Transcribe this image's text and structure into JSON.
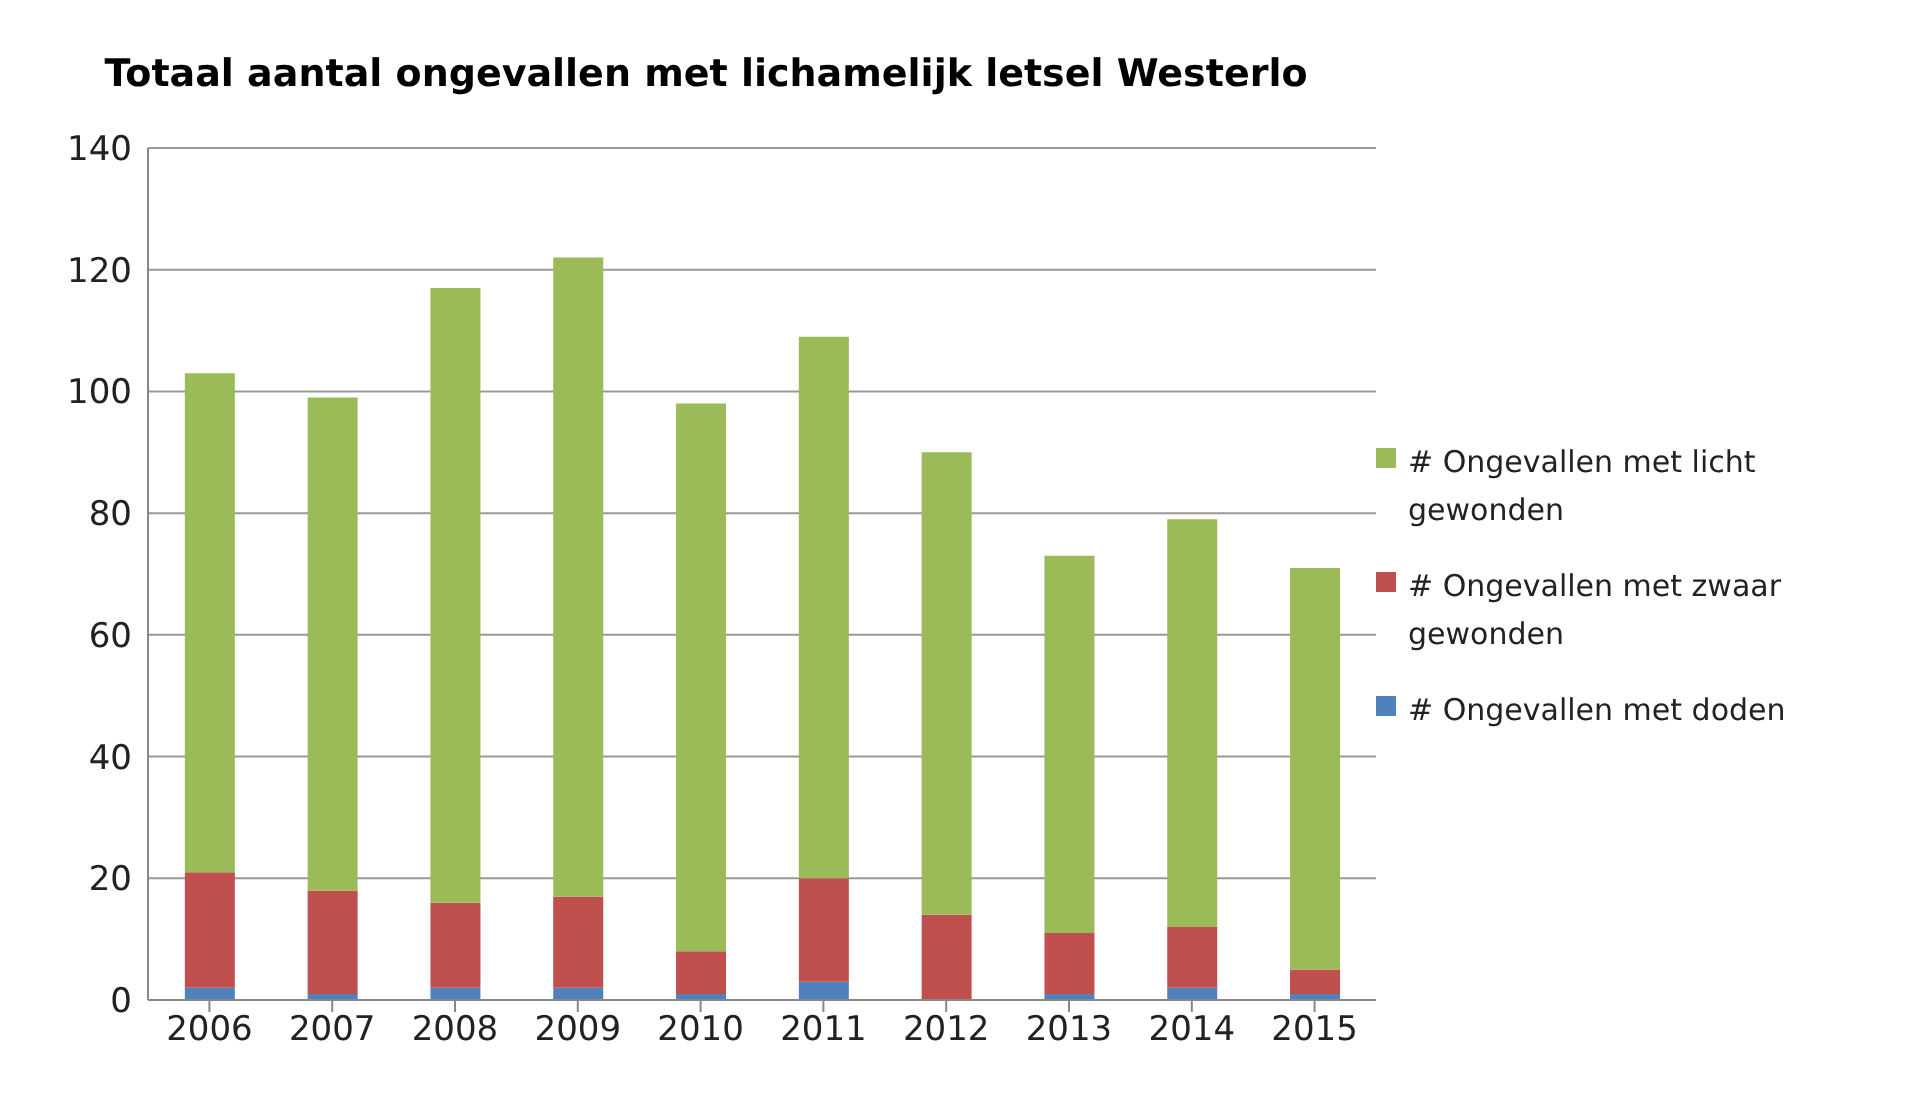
{
  "chart_data": {
    "type": "bar",
    "title": "Totaal aantal ongevallen met lichamelijk letsel Westerlo",
    "categories": [
      "2006",
      "2007",
      "2008",
      "2009",
      "2010",
      "2011",
      "2012",
      "2013",
      "2014",
      "2015"
    ],
    "stacked": true,
    "series": [
      {
        "name": "# Ongevallen met doden",
        "color": "#4f81bd",
        "values": [
          2,
          1,
          2,
          2,
          1,
          3,
          0,
          1,
          2,
          1
        ]
      },
      {
        "name": "# Ongevallen met zwaar gewonden",
        "color": "#c0504d",
        "values": [
          19,
          17,
          14,
          15,
          7,
          17,
          14,
          10,
          10,
          4
        ]
      },
      {
        "name": "# Ongevallen met licht gewonden",
        "color": "#9bbb59",
        "values": [
          82,
          81,
          101,
          105,
          90,
          89,
          76,
          62,
          67,
          66
        ]
      }
    ],
    "ylim": [
      0,
      140
    ],
    "yticks": [
      0,
      20,
      40,
      60,
      80,
      100,
      120,
      140
    ],
    "grid": "y",
    "legend": "right"
  }
}
